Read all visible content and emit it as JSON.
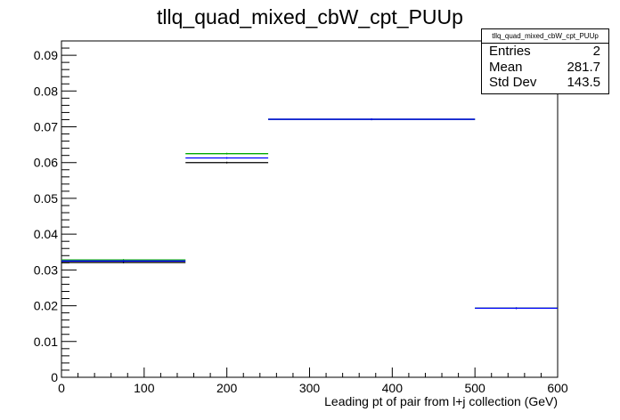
{
  "title": "tllq_quad_mixed_cbW_cpt_PUUp",
  "stats": {
    "name": "tllq_quad_mixed_cbW_cpt_PUUp",
    "rows": [
      {
        "label": "Entries",
        "value": "2"
      },
      {
        "label": "Mean",
        "value": "281.7"
      },
      {
        "label": "Std Dev",
        "value": "143.5"
      }
    ]
  },
  "chart_data": {
    "type": "histogram",
    "title": "tllq_quad_mixed_cbW_cpt_PUUp",
    "xlabel": "Leading pt of pair from l+j collection (GeV)",
    "ylabel": "",
    "xlim": [
      0,
      600
    ],
    "ylim": [
      0,
      0.094
    ],
    "x_ticks": [
      0,
      100,
      200,
      300,
      400,
      500,
      600
    ],
    "y_ticks": [
      0,
      0.01,
      0.02,
      0.03,
      0.04,
      0.05,
      0.06,
      0.07,
      0.08,
      0.09
    ],
    "bin_edges": [
      0,
      150,
      250,
      500,
      600
    ],
    "series": [
      {
        "color": "#000000",
        "values": [
          0.0321,
          0.06,
          0.0721,
          0.0193
        ]
      },
      {
        "color": "#00aa00",
        "values": [
          0.0328,
          0.0625,
          0.0721,
          0.0193
        ]
      },
      {
        "color": "#0000ff",
        "values": [
          0.0325,
          0.0613,
          0.0721,
          0.0193
        ]
      }
    ],
    "grid": false,
    "legend": "none"
  }
}
